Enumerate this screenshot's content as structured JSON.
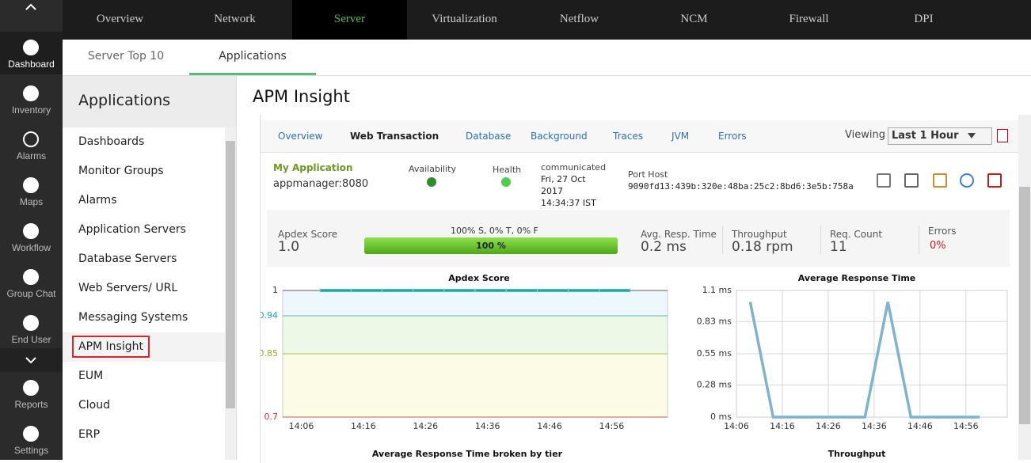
{
  "nav": {
    "items": [
      "Dashboard",
      "Inventory",
      "Alarms",
      "Maps",
      "Workflow",
      "Group Chat",
      "End User",
      "Reports",
      "Settings"
    ],
    "active": 0
  },
  "top_tabs": {
    "items": [
      "Overview",
      "Network",
      "Server",
      "Virtualization",
      "Netflow",
      "NCM",
      "Firewall",
      "DPI"
    ],
    "active": 2
  },
  "sub_tabs": {
    "items": [
      "Server Top 10",
      "Applications"
    ],
    "active": 1
  },
  "sidebar": {
    "title": "Applications",
    "items": [
      "Dashboards",
      "Monitor Groups",
      "Alarms",
      "Application Servers",
      "Database Servers",
      "Web Servers/ URL",
      "Messaging Systems",
      "APM Insight",
      "EUM",
      "Cloud",
      "ERP"
    ],
    "selected": 7
  },
  "page": {
    "title": "APM Insight"
  },
  "inner_tabs": {
    "items": [
      "Overview",
      "Web Transaction",
      "Database",
      "Background",
      "Traces",
      "JVM",
      "Errors"
    ],
    "active": 1,
    "viewing_label": "Viewing",
    "period": "Last 1 Hour"
  },
  "app": {
    "name": "My Application",
    "host": "appmanager:8080",
    "availability_label": "Availability",
    "health_label": "Health",
    "communicated_label": "communicated",
    "communicated_lines": [
      "Fri, 27 Oct",
      "2017",
      "14:34:37 IST"
    ],
    "port_host_label": "Port Host",
    "port_host": "9090fd13:439b:320e:48ba:25c2:8bd6:3e5b:758a"
  },
  "metrics": {
    "apdex_label": "Apdex Score",
    "apdex": "1.0",
    "breakdown": "100% S, 0% T, 0% F",
    "bar_value": 100,
    "bar_label": "100 %",
    "items": [
      {
        "label": "Avg. Resp. Time",
        "value": "0.2 ms"
      },
      {
        "label": "Throughput",
        "value": "0.18 rpm"
      },
      {
        "label": "Req. Count",
        "value": "11"
      },
      {
        "label": "Errors",
        "value": "0%"
      }
    ]
  },
  "charts": [
    {
      "type": "line",
      "title": "Apdex Score",
      "x": [
        "14:09",
        "14:14",
        "14:19",
        "14:24",
        "14:29",
        "14:34",
        "14:39",
        "14:44",
        "14:49",
        "14:54",
        "14:59"
      ],
      "values": [
        1,
        1,
        1,
        1,
        1,
        1,
        1,
        1,
        1,
        1,
        1
      ],
      "color": "#1aa7a7",
      "xlim": [
        "14:03",
        "15:05"
      ],
      "xticks": [
        "14:06",
        "14:16",
        "14:26",
        "14:36",
        "14:46",
        "14:56"
      ],
      "ylim": [
        0.7,
        1
      ],
      "yticks": [
        0.7,
        0.85,
        0.94,
        1
      ],
      "ytick_colors": [
        "#c0392b",
        "#9aa820",
        "#1aa7a7",
        "#333333"
      ],
      "bands": [
        {
          "from": 0.94,
          "to": 1,
          "color": "#eef8fc"
        },
        {
          "from": 0.85,
          "to": 0.94,
          "color": "#eef8e6"
        },
        {
          "from": 0.7,
          "to": 0.85,
          "color": "#fbfbe6"
        }
      ]
    },
    {
      "type": "line",
      "title": "Average Response Time",
      "x": [
        "14:09",
        "14:14",
        "14:19",
        "14:24",
        "14:29",
        "14:34",
        "14:39",
        "14:44",
        "14:49",
        "14:54",
        "14:59"
      ],
      "values": [
        1.0,
        0,
        0,
        0,
        0,
        0,
        1.0,
        0,
        0,
        0,
        0
      ],
      "color": "#7fb3cf",
      "xlim": [
        "14:06",
        "15:05"
      ],
      "xticks": [
        "14:06",
        "14:16",
        "14:26",
        "14:36",
        "14:46",
        "14:56"
      ],
      "ylim": [
        0,
        1.1
      ],
      "yticks": [
        {
          "value": 0,
          "label": "0 ms"
        },
        {
          "value": 0.28,
          "label": "0.28 ms"
        },
        {
          "value": 0.55,
          "label": "0.55 ms"
        },
        {
          "value": 0.83,
          "label": "0.83 ms"
        },
        {
          "value": 1.1,
          "label": "1.1 ms"
        }
      ],
      "grid": true
    },
    {
      "title": "Average Response Time broken by tier"
    },
    {
      "title": "Throughput"
    }
  ]
}
